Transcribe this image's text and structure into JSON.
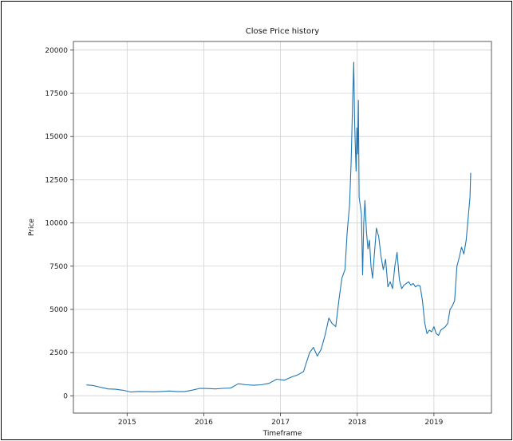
{
  "chart_data": {
    "type": "line",
    "title": "Close Price history",
    "xlabel": "Timeframe",
    "ylabel": "Price",
    "ylim": [
      -1000,
      20500
    ],
    "xlim": [
      2014.3,
      2019.75
    ],
    "x_ticks": [
      "2015",
      "2016",
      "2017",
      "2018",
      "2019"
    ],
    "y_ticks": [
      "0",
      "2500",
      "5000",
      "7500",
      "10000",
      "12500",
      "15000",
      "17500",
      "20000"
    ],
    "grid": true,
    "line_color": "#1f77b4",
    "series": [
      {
        "x": [
          2014.47,
          2014.55,
          2014.65,
          2014.75,
          2014.85,
          2014.95,
          2015.05,
          2015.15,
          2015.25,
          2015.35,
          2015.45,
          2015.55,
          2015.65,
          2015.75,
          2015.85,
          2015.95,
          2016.05,
          2016.15,
          2016.25,
          2016.35,
          2016.45,
          2016.55,
          2016.65,
          2016.75,
          2016.85,
          2016.95,
          2017.05,
          2017.15,
          2017.22,
          2017.3,
          2017.38,
          2017.43,
          2017.48,
          2017.53,
          2017.58,
          2017.63,
          2017.67,
          2017.72,
          2017.76,
          2017.8,
          2017.84,
          2017.87,
          2017.9,
          2017.92,
          2017.94,
          2017.955,
          2017.965,
          2017.975,
          2017.985,
          2017.995,
          2018.005,
          2018.015,
          2018.025,
          2018.04,
          2018.055,
          2018.07,
          2018.085,
          2018.1,
          2018.12,
          2018.14,
          2018.16,
          2018.18,
          2018.2,
          2018.22,
          2018.25,
          2018.28,
          2018.31,
          2018.34,
          2018.37,
          2018.4,
          2018.43,
          2018.46,
          2018.49,
          2018.52,
          2018.55,
          2018.58,
          2018.61,
          2018.64,
          2018.67,
          2018.7,
          2018.73,
          2018.76,
          2018.79,
          2018.82,
          2018.85,
          2018.88,
          2018.91,
          2018.94,
          2018.97,
          2019.0,
          2019.03,
          2019.06,
          2019.09,
          2019.12,
          2019.15,
          2019.18,
          2019.21,
          2019.24,
          2019.27,
          2019.3,
          2019.33,
          2019.36,
          2019.39,
          2019.42,
          2019.45,
          2019.47,
          2019.48
        ],
        "y": [
          630,
          600,
          500,
          400,
          380,
          320,
          220,
          250,
          240,
          230,
          250,
          280,
          240,
          240,
          330,
          430,
          420,
          400,
          430,
          450,
          700,
          640,
          610,
          640,
          720,
          960,
          900,
          1100,
          1200,
          1400,
          2500,
          2800,
          2300,
          2700,
          3500,
          4500,
          4200,
          4000,
          5500,
          6800,
          7300,
          9500,
          11000,
          13500,
          17000,
          19300,
          16000,
          14500,
          13000,
          15500,
          14000,
          17100,
          11500,
          11000,
          10500,
          7000,
          10000,
          11300,
          9500,
          8500,
          9000,
          7500,
          6800,
          8000,
          9700,
          9200,
          8100,
          7300,
          7900,
          6300,
          6600,
          6200,
          7500,
          8300,
          6700,
          6200,
          6400,
          6500,
          6600,
          6400,
          6500,
          6300,
          6400,
          6350,
          5500,
          4200,
          3600,
          3800,
          3700,
          4000,
          3600,
          3500,
          3800,
          3900,
          4000,
          4200,
          5000,
          5200,
          5500,
          7500,
          8000,
          8600,
          8200,
          9000,
          10500,
          11500,
          12900
        ]
      }
    ]
  }
}
